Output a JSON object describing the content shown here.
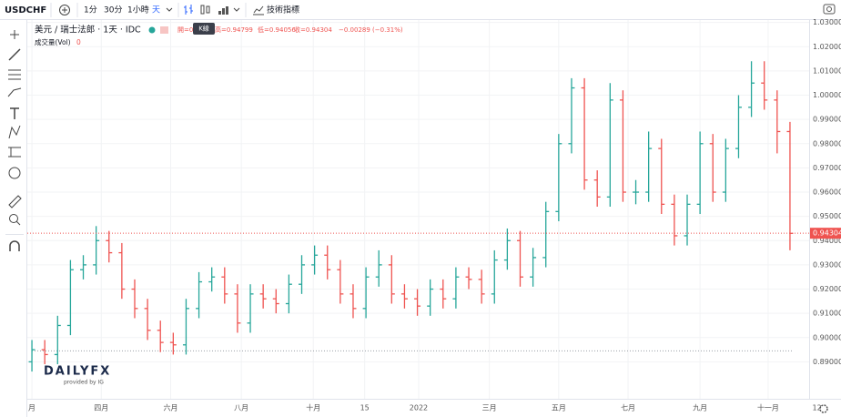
{
  "toolbar": {
    "symbol": "USDCHF",
    "intervals": [
      "1分",
      "30分",
      "1小時",
      "天"
    ],
    "indicators": "技術指標",
    "tooltip": "K線"
  },
  "legend": {
    "title": "美元 / 瑞士法郎 · 1天 · IDC",
    "open": "開=0.",
    "high": "高=0.94799",
    "low": "低=0.94056",
    "close": "收=0.94304",
    "change": "−0.00289 (−0.31%)",
    "volume_label": "成交量(Vol)",
    "volume": "0"
  },
  "logo": {
    "brand": "DAILYFX",
    "provider": "provided by IG"
  },
  "chart_data": {
    "type": "ohlc",
    "open": [
      0.89,
      0.895,
      0.893,
      0.905,
      0.928,
      0.93,
      0.94,
      0.935,
      0.92,
      0.912,
      0.903,
      0.898,
      0.897,
      0.912,
      0.923,
      0.925,
      0.918,
      0.906,
      0.918,
      0.916,
      0.914,
      0.922,
      0.93,
      0.934,
      0.928,
      0.918,
      0.912,
      0.925,
      0.93,
      0.918,
      0.916,
      0.913,
      0.92,
      0.916,
      0.925,
      0.924,
      0.918,
      0.932,
      0.94,
      0.925,
      0.933,
      0.952,
      0.98,
      1.003,
      0.965,
      0.958,
      0.998,
      0.96,
      0.96,
      0.978,
      0.955,
      0.942,
      0.955,
      0.98,
      0.96,
      0.978,
      0.995,
      1.005,
      0.998,
      0.985
    ],
    "high": [
      0.899,
      0.899,
      0.909,
      0.932,
      0.934,
      0.946,
      0.944,
      0.939,
      0.924,
      0.916,
      0.907,
      0.902,
      0.916,
      0.927,
      0.929,
      0.929,
      0.922,
      0.922,
      0.922,
      0.92,
      0.926,
      0.934,
      0.938,
      0.938,
      0.932,
      0.922,
      0.929,
      0.936,
      0.934,
      0.922,
      0.92,
      0.924,
      0.924,
      0.929,
      0.929,
      0.928,
      0.936,
      0.945,
      0.944,
      0.937,
      0.956,
      0.984,
      1.007,
      1.007,
      0.969,
      1.005,
      1.002,
      0.965,
      0.985,
      0.982,
      0.959,
      0.959,
      0.985,
      0.984,
      0.982,
      1.0,
      1.014,
      1.014,
      1.002,
      0.989
    ],
    "low": [
      0.886,
      0.889,
      0.889,
      0.901,
      0.924,
      0.926,
      0.931,
      0.916,
      0.908,
      0.899,
      0.894,
      0.893,
      0.893,
      0.908,
      0.919,
      0.914,
      0.902,
      0.902,
      0.912,
      0.91,
      0.91,
      0.918,
      0.926,
      0.924,
      0.914,
      0.908,
      0.908,
      0.921,
      0.914,
      0.912,
      0.909,
      0.909,
      0.912,
      0.912,
      0.92,
      0.914,
      0.914,
      0.928,
      0.921,
      0.921,
      0.929,
      0.948,
      0.976,
      0.961,
      0.954,
      0.954,
      0.956,
      0.955,
      0.956,
      0.951,
      0.938,
      0.938,
      0.951,
      0.956,
      0.956,
      0.974,
      0.991,
      0.994,
      0.976,
      0.936
    ],
    "close": [
      0.895,
      0.893,
      0.905,
      0.928,
      0.93,
      0.94,
      0.935,
      0.92,
      0.912,
      0.903,
      0.898,
      0.897,
      0.912,
      0.923,
      0.925,
      0.918,
      0.906,
      0.918,
      0.916,
      0.914,
      0.922,
      0.93,
      0.934,
      0.928,
      0.918,
      0.912,
      0.925,
      0.93,
      0.918,
      0.916,
      0.913,
      0.92,
      0.916,
      0.925,
      0.924,
      0.918,
      0.932,
      0.94,
      0.925,
      0.933,
      0.952,
      0.98,
      1.003,
      0.965,
      0.958,
      0.998,
      0.96,
      0.96,
      0.978,
      0.955,
      0.942,
      0.955,
      0.98,
      0.96,
      0.978,
      0.995,
      1.005,
      0.998,
      0.985,
      0.943
    ],
    "up_color": "#26a69a",
    "down_color": "#ef5350",
    "xlim": [
      -0.5,
      59.5
    ],
    "xticks": [
      {
        "value": 0,
        "label": "月"
      },
      {
        "value": 5.4,
        "label": "四月"
      },
      {
        "value": 10.8,
        "label": "六月"
      },
      {
        "value": 16.3,
        "label": "八月"
      },
      {
        "value": 21.9,
        "label": "十月"
      },
      {
        "value": 25.9,
        "label": "15"
      },
      {
        "value": 30.1,
        "label": "2022"
      },
      {
        "value": 35.6,
        "label": "三月"
      },
      {
        "value": 41,
        "label": "五月"
      },
      {
        "value": 46.4,
        "label": "七月"
      },
      {
        "value": 52,
        "label": "九月"
      },
      {
        "value": 57.3,
        "label": "十一月"
      },
      {
        "value": 61.1,
        "label": "12"
      }
    ],
    "ylim": [
      0.874,
      1.031
    ],
    "yticks": [
      {
        "value": 0.89,
        "label": "0.89000"
      },
      {
        "value": 0.9,
        "label": "0.90000"
      },
      {
        "value": 0.91,
        "label": "0.91000"
      },
      {
        "value": 0.92,
        "label": "0.92000"
      },
      {
        "value": 0.93,
        "label": "0.93000"
      },
      {
        "value": 0.94,
        "label": "0.94000"
      },
      {
        "value": 0.95,
        "label": "0.95000"
      },
      {
        "value": 0.96,
        "label": "0.96000"
      },
      {
        "value": 0.97,
        "label": "0.97000"
      },
      {
        "value": 0.98,
        "label": "0.98000"
      },
      {
        "value": 0.99,
        "label": "0.99000"
      },
      {
        "value": 1.0,
        "label": "1.00000"
      },
      {
        "value": 1.01,
        "label": "1.01000"
      },
      {
        "value": 1.02,
        "label": "1.02000"
      },
      {
        "value": 1.03,
        "label": "1.03000"
      }
    ],
    "last_price": {
      "value": 0.94304,
      "label": "0.94304"
    },
    "reference_line": 0.8945
  }
}
